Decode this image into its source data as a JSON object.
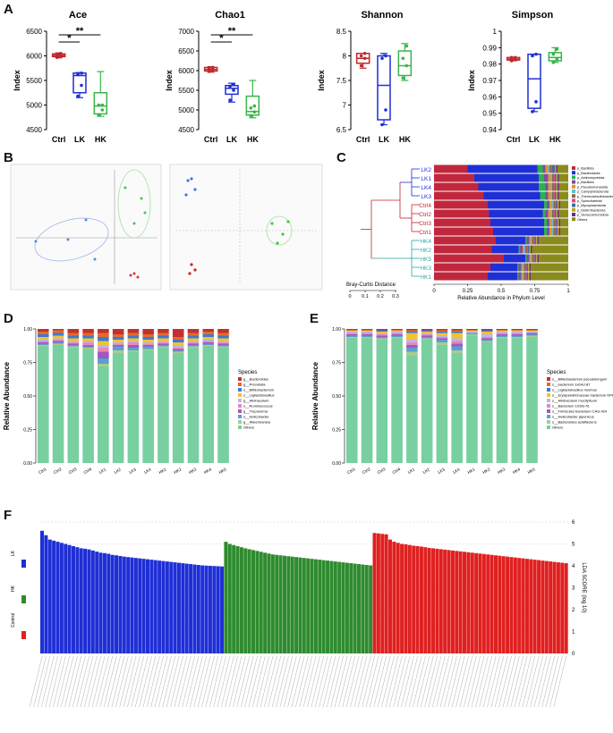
{
  "panels": {
    "A": "A",
    "B": "B",
    "C": "C",
    "D": "D",
    "E": "E",
    "F": "F"
  },
  "colors": {
    "ctrl": "#c0272d",
    "lk": "#1f2fd6",
    "hk": "#39b54a"
  },
  "boxplots": [
    {
      "title": "Ace",
      "ylabel": "Index",
      "ylim": [
        4500,
        6500
      ],
      "ticks": [
        4500,
        5000,
        5500,
        6000,
        6500
      ],
      "groups": [
        "Ctrl",
        "LK",
        "HK"
      ],
      "boxes": [
        {
          "min": 5960,
          "q1": 5985,
          "med": 6010,
          "q3": 6040,
          "max": 6060,
          "pts": [
            5970,
            6000,
            6020,
            6050
          ]
        },
        {
          "min": 5150,
          "q1": 5250,
          "med": 5600,
          "q3": 5650,
          "max": 5660,
          "pts": [
            5180,
            5400,
            5620,
            5650
          ]
        },
        {
          "min": 4770,
          "q1": 4820,
          "med": 4980,
          "q3": 5250,
          "max": 5680,
          "pts": [
            4800,
            4900,
            5000,
            5000
          ]
        }
      ],
      "sig": [
        {
          "from": 0,
          "to": 1,
          "label": "*"
        },
        {
          "from": 0,
          "to": 2,
          "label": "**"
        }
      ]
    },
    {
      "title": "Chao1",
      "ylabel": "Index",
      "ylim": [
        4500,
        7000
      ],
      "ticks": [
        4500,
        5000,
        5500,
        6000,
        6500,
        7000
      ],
      "groups": [
        "Ctrl",
        "LK",
        "HK"
      ],
      "boxes": [
        {
          "min": 5960,
          "q1": 5990,
          "med": 6030,
          "q3": 6080,
          "max": 6100,
          "pts": [
            5980,
            6020,
            6050,
            6080
          ]
        },
        {
          "min": 5200,
          "q1": 5400,
          "med": 5550,
          "q3": 5620,
          "max": 5680,
          "pts": [
            5250,
            5500,
            5600,
            5650
          ]
        },
        {
          "min": 4800,
          "q1": 4870,
          "med": 4960,
          "q3": 5350,
          "max": 5750,
          "pts": [
            4850,
            4950,
            5050,
            5100
          ]
        }
      ],
      "sig": [
        {
          "from": 0,
          "to": 1,
          "label": "*"
        },
        {
          "from": 0,
          "to": 2,
          "label": "**"
        }
      ]
    },
    {
      "title": "Shannon",
      "ylabel": "Index",
      "ylim": [
        6.5,
        8.5
      ],
      "ticks": [
        6.5,
        7.0,
        7.5,
        8.0,
        8.5
      ],
      "groups": [
        "Ctrl",
        "LK",
        "HK"
      ],
      "boxes": [
        {
          "min": 7.75,
          "q1": 7.85,
          "med": 7.95,
          "q3": 8.05,
          "max": 8.05,
          "pts": [
            7.8,
            7.95,
            8.0,
            8.05
          ]
        },
        {
          "min": 6.6,
          "q1": 6.7,
          "med": 7.4,
          "q3": 8.0,
          "max": 8.05,
          "pts": [
            6.6,
            6.9,
            7.95,
            8.0
          ]
        },
        {
          "min": 7.5,
          "q1": 7.6,
          "med": 7.8,
          "q3": 8.1,
          "max": 8.25,
          "pts": [
            7.55,
            7.8,
            7.95,
            8.2
          ]
        }
      ],
      "sig": []
    },
    {
      "title": "Simpson",
      "ylabel": "Index",
      "ylim": [
        0.94,
        1.0
      ],
      "ticks": [
        0.94,
        0.95,
        0.96,
        0.97,
        0.98,
        0.99,
        1.0
      ],
      "groups": [
        "Ctrl",
        "LK",
        "HK"
      ],
      "boxes": [
        {
          "min": 0.982,
          "q1": 0.9825,
          "med": 0.983,
          "q3": 0.984,
          "max": 0.984,
          "pts": [
            0.982,
            0.983,
            0.984,
            0.984
          ]
        },
        {
          "min": 0.951,
          "q1": 0.953,
          "med": 0.971,
          "q3": 0.986,
          "max": 0.986,
          "pts": [
            0.951,
            0.957,
            0.985,
            0.986
          ]
        },
        {
          "min": 0.981,
          "q1": 0.982,
          "med": 0.984,
          "q3": 0.987,
          "max": 0.99,
          "pts": [
            0.981,
            0.983,
            0.986,
            0.989
          ]
        }
      ],
      "sig": []
    }
  ],
  "dendro": {
    "samples": [
      "LK2",
      "LK1",
      "LK4",
      "LK3",
      "Ctrl4",
      "Ctrl2",
      "Ctrl3",
      "Ctrl1",
      "HK4",
      "HK2",
      "HK5",
      "HK3",
      "HK1"
    ],
    "samplecolors": [
      "#1f2fd6",
      "#1f2fd6",
      "#1f2fd6",
      "#1f2fd6",
      "#c0272d",
      "#c0272d",
      "#c0272d",
      "#c0272d",
      "#2aa9a5",
      "#2aa9a5",
      "#2aa9a5",
      "#2aa9a5",
      "#2aa9a5"
    ],
    "scale_title": "Bray-Curtis Distance",
    "scale_ticks": [
      "0",
      "0.1",
      "0.2",
      "0.3"
    ],
    "xlabel": "Relative Abundance in Phylum Level",
    "xticks": [
      "0",
      "0.25",
      "0.5",
      "0.75",
      "1"
    ],
    "legend": [
      "p_Bacillota",
      "p_Bacteroidota",
      "p_Actinomycetota",
      "p_Bacillota",
      "p_Pseudomonadota",
      "p_Campylobacterota",
      "p_Thermodesulfobacteriota",
      "p_Spirochaetota",
      "p_Mycoplasmatota",
      "p_Deferribacterota",
      "p_Verrucomicrobiota",
      "Others"
    ],
    "legendcolors": [
      "#c0273d",
      "#1f2fd6",
      "#2bb24c",
      "#7b4ea3",
      "#e0962b",
      "#5bbfd6",
      "#8a6a3b",
      "#d94a8c",
      "#3e6e9e",
      "#b8a62e",
      "#6d2c81",
      "#8b8b1d"
    ]
  },
  "chart_data": [
    {
      "type": "bar",
      "panel": "D",
      "ylabel": "Relative Abundance",
      "ylim": [
        0,
        1
      ],
      "yticks": [
        "0.00",
        "0.25",
        "0.50",
        "0.75",
        "1.00"
      ],
      "categories": [
        "Ctrl1",
        "Ctrl2",
        "Ctrl3",
        "Ctrl4",
        "LK1",
        "LK2",
        "LK3",
        "LK4",
        "HK1",
        "HK2",
        "HK3",
        "HK4",
        "HK5"
      ],
      "legend_title": "Species",
      "series": [
        {
          "name": "Others",
          "color": "#78cfa0",
          "values": [
            0.87,
            0.88,
            0.86,
            0.85,
            0.72,
            0.82,
            0.83,
            0.84,
            0.86,
            0.82,
            0.86,
            0.87,
            0.86
          ]
        },
        {
          "name": "g__Akkermansia",
          "color": "#a9cd8c",
          "values": [
            0.01,
            0.01,
            0.01,
            0.01,
            0.02,
            0.02,
            0.01,
            0.01,
            0.01,
            0.01,
            0.01,
            0.01,
            0.01
          ]
        },
        {
          "name": "s__Helicobacter",
          "color": "#5b9fd2",
          "values": [
            0.01,
            0.01,
            0.01,
            0.01,
            0.04,
            0.03,
            0.02,
            0.02,
            0.01,
            0.01,
            0.01,
            0.01,
            0.01
          ]
        },
        {
          "name": "g__Treponema",
          "color": "#9f59c0",
          "values": [
            0.01,
            0.01,
            0.01,
            0.01,
            0.05,
            0.01,
            0.02,
            0.01,
            0.01,
            0.01,
            0.01,
            0.01,
            0.01
          ]
        },
        {
          "name": "s__Ruminococcus",
          "color": "#e889b8",
          "values": [
            0.01,
            0.01,
            0.01,
            0.02,
            0.03,
            0.01,
            0.02,
            0.01,
            0.01,
            0.01,
            0.01,
            0.01,
            0.01
          ]
        },
        {
          "name": "g__Allobaculum",
          "color": "#b8b8e8",
          "values": [
            0.01,
            0.01,
            0.01,
            0.01,
            0.02,
            0.01,
            0.01,
            0.01,
            0.01,
            0.02,
            0.01,
            0.01,
            0.01
          ]
        },
        {
          "name": "s__Ligilactobacillus",
          "color": "#f2c230",
          "values": [
            0.02,
            0.02,
            0.02,
            0.02,
            0.03,
            0.02,
            0.02,
            0.02,
            0.02,
            0.02,
            0.02,
            0.02,
            0.02
          ]
        },
        {
          "name": "s__Bifidobacterium",
          "color": "#3a7bd5",
          "values": [
            0.02,
            0.02,
            0.02,
            0.02,
            0.03,
            0.02,
            0.02,
            0.02,
            0.02,
            0.02,
            0.02,
            0.02,
            0.02
          ]
        },
        {
          "name": "g__Prevotella",
          "color": "#e06c2b",
          "values": [
            0.02,
            0.02,
            0.02,
            0.02,
            0.03,
            0.02,
            0.02,
            0.02,
            0.02,
            0.02,
            0.02,
            0.02,
            0.02
          ]
        },
        {
          "name": "g__Bacteroides",
          "color": "#c62f30",
          "values": [
            0.02,
            0.01,
            0.03,
            0.03,
            0.03,
            0.04,
            0.03,
            0.04,
            0.03,
            0.06,
            0.03,
            0.02,
            0.03
          ]
        }
      ]
    },
    {
      "type": "bar",
      "panel": "E",
      "ylabel": "Relative Abundance",
      "ylim": [
        0,
        1
      ],
      "yticks": [
        "0.00",
        "0.25",
        "0.50",
        "0.75",
        "1.00"
      ],
      "categories": [
        "Ctrl1",
        "Ctrl2",
        "Ctrl3",
        "Ctrl4",
        "LK1",
        "LK2",
        "LK3",
        "LK4",
        "HK1",
        "HK2",
        "HK3",
        "HK4",
        "HK5"
      ],
      "legend_title": "Species",
      "series": [
        {
          "name": "Others",
          "color": "#78cfa0",
          "values": [
            0.93,
            0.93,
            0.92,
            0.93,
            0.8,
            0.92,
            0.88,
            0.82,
            0.95,
            0.9,
            0.93,
            0.93,
            0.94
          ]
        },
        {
          "name": "s__Bacteroides acidifaciens",
          "color": "#a9cd8c",
          "values": [
            0.01,
            0.01,
            0.01,
            0.01,
            0.03,
            0.01,
            0.02,
            0.02,
            0.01,
            0.01,
            0.01,
            0.01,
            0.01
          ]
        },
        {
          "name": "s__Helicobacter japonicus",
          "color": "#5b9fd2",
          "values": [
            0.01,
            0.01,
            0.01,
            0.01,
            0.03,
            0.01,
            0.02,
            0.03,
            0.01,
            0.01,
            0.01,
            0.01,
            0.01
          ]
        },
        {
          "name": "s__Firmicutes bacterium CAG:424",
          "color": "#9f59c0",
          "values": [
            0.01,
            0.01,
            0.01,
            0.01,
            0.02,
            0.01,
            0.01,
            0.02,
            0.0,
            0.01,
            0.01,
            0.01,
            0.01
          ]
        },
        {
          "name": "s__Bacterium 1XD8-76",
          "color": "#e889b8",
          "values": [
            0.01,
            0.01,
            0.01,
            0.01,
            0.02,
            0.01,
            0.01,
            0.02,
            0.0,
            0.01,
            0.01,
            0.01,
            0.0
          ]
        },
        {
          "name": "s__Allobaculum mucilyticum",
          "color": "#b8b8e8",
          "values": [
            0.01,
            0.01,
            0.01,
            0.01,
            0.02,
            0.01,
            0.01,
            0.02,
            0.01,
            0.02,
            0.01,
            0.01,
            0.01
          ]
        },
        {
          "name": "s__Erysipelotrichaceae bacterium OPF54",
          "color": "#f2c230",
          "values": [
            0.01,
            0.01,
            0.01,
            0.01,
            0.05,
            0.01,
            0.02,
            0.04,
            0.01,
            0.02,
            0.01,
            0.01,
            0.01
          ]
        },
        {
          "name": "s__Ligilactobacillus murinus",
          "color": "#3a7bd5",
          "values": [
            0.0,
            0.0,
            0.01,
            0.0,
            0.01,
            0.01,
            0.01,
            0.01,
            0.0,
            0.01,
            0.0,
            0.0,
            0.0
          ]
        },
        {
          "name": "s__bacterium 1xD42-87",
          "color": "#e06c2b",
          "values": [
            0.0,
            0.0,
            0.0,
            0.0,
            0.01,
            0.0,
            0.01,
            0.01,
            0.0,
            0.0,
            0.0,
            0.0,
            0.0
          ]
        },
        {
          "name": "s__Bifidobacterium pseudolongum",
          "color": "#c62f30",
          "values": [
            0.01,
            0.01,
            0.01,
            0.01,
            0.01,
            0.01,
            0.01,
            0.01,
            0.01,
            0.01,
            0.01,
            0.01,
            0.01
          ]
        }
      ]
    },
    {
      "type": "bar",
      "panel": "F",
      "ylabel": "LDA SCORE (log 10)",
      "ylim": [
        0,
        6
      ],
      "yticks": [
        "0",
        "1",
        "2",
        "3",
        "4",
        "5",
        "6"
      ],
      "legend": [
        "LK",
        "HK",
        "Control"
      ],
      "series": [
        {
          "name": "LK",
          "color": "#1f2fd6",
          "values": [
            5.6,
            5.4,
            5.2,
            5.15,
            5.1,
            5.05,
            5.0,
            4.95,
            4.9,
            4.85,
            4.8,
            4.78,
            4.75,
            4.7,
            4.65,
            4.6,
            4.58,
            4.55,
            4.5,
            4.48,
            4.45,
            4.42,
            4.4,
            4.38,
            4.36,
            4.34,
            4.32,
            4.3,
            4.28,
            4.26,
            4.24,
            4.22,
            4.2,
            4.18,
            4.16,
            4.14,
            4.12,
            4.1,
            4.08,
            4.06,
            4.04,
            4.02,
            4.01,
            4.0,
            3.99,
            3.98,
            3.97
          ]
        },
        {
          "name": "HK",
          "color": "#2e8b2e",
          "values": [
            5.1,
            5.0,
            4.95,
            4.9,
            4.85,
            4.8,
            4.76,
            4.72,
            4.68,
            4.64,
            4.6,
            4.56,
            4.52,
            4.5,
            4.48,
            4.46,
            4.44,
            4.42,
            4.4,
            4.38,
            4.36,
            4.34,
            4.32,
            4.3,
            4.28,
            4.26,
            4.24,
            4.22,
            4.2,
            4.18,
            4.16,
            4.14,
            4.12,
            4.1,
            4.08,
            4.06,
            4.04,
            4.02
          ]
        },
        {
          "name": "Control",
          "color": "#e02020",
          "values": [
            5.5,
            5.48,
            5.46,
            5.44,
            5.2,
            5.1,
            5.05,
            5.0,
            4.98,
            4.95,
            4.92,
            4.9,
            4.88,
            4.85,
            4.82,
            4.8,
            4.78,
            4.76,
            4.74,
            4.72,
            4.7,
            4.68,
            4.66,
            4.64,
            4.62,
            4.6,
            4.58,
            4.56,
            4.54,
            4.52,
            4.5,
            4.48,
            4.46,
            4.44,
            4.42,
            4.4,
            4.38,
            4.36,
            4.34,
            4.32,
            4.3,
            4.28,
            4.26,
            4.24,
            4.22,
            4.2,
            4.18,
            4.16,
            4.14,
            4.12
          ]
        }
      ]
    }
  ]
}
